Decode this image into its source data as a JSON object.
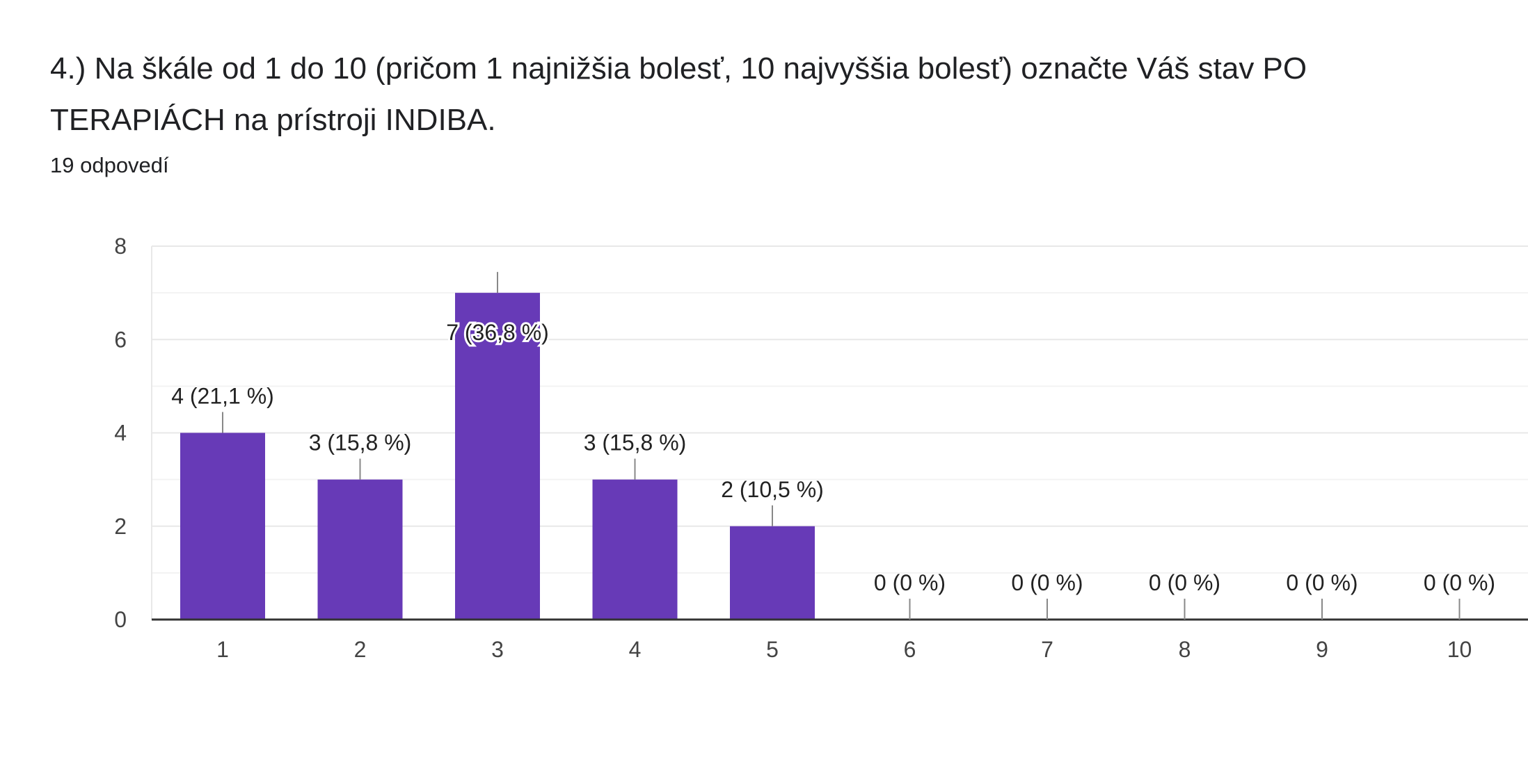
{
  "question": {
    "title": "4.) Na škále od 1 do 10 (pričom 1 najnižšia bolesť, 10 najvyššia bolesť) označte Váš stav PO TERAPIÁCH na prístroji INDIBA.",
    "response_count": "19 odpovedí"
  },
  "colors": {
    "bar": "#673AB7",
    "grid": "#E8E8E8",
    "axis": "#333333",
    "leader": "#888888"
  },
  "chart_data": {
    "type": "bar",
    "categories": [
      "1",
      "2",
      "3",
      "4",
      "5",
      "6",
      "7",
      "8",
      "9",
      "10"
    ],
    "values": [
      4,
      3,
      7,
      3,
      2,
      0,
      0,
      0,
      0,
      0
    ],
    "data_labels": [
      "4 (21,1 %)",
      "3 (15,8 %)",
      "7 (36,8 %)",
      "3 (15,8 %)",
      "2 (10,5 %)",
      "0 (0 %)",
      "0 (0 %)",
      "0 (0 %)",
      "0 (0 %)",
      "0 (0 %)"
    ],
    "yticks": [
      0,
      2,
      4,
      6,
      8
    ],
    "ylim": [
      0,
      8
    ],
    "grid": true,
    "legend": "none"
  }
}
